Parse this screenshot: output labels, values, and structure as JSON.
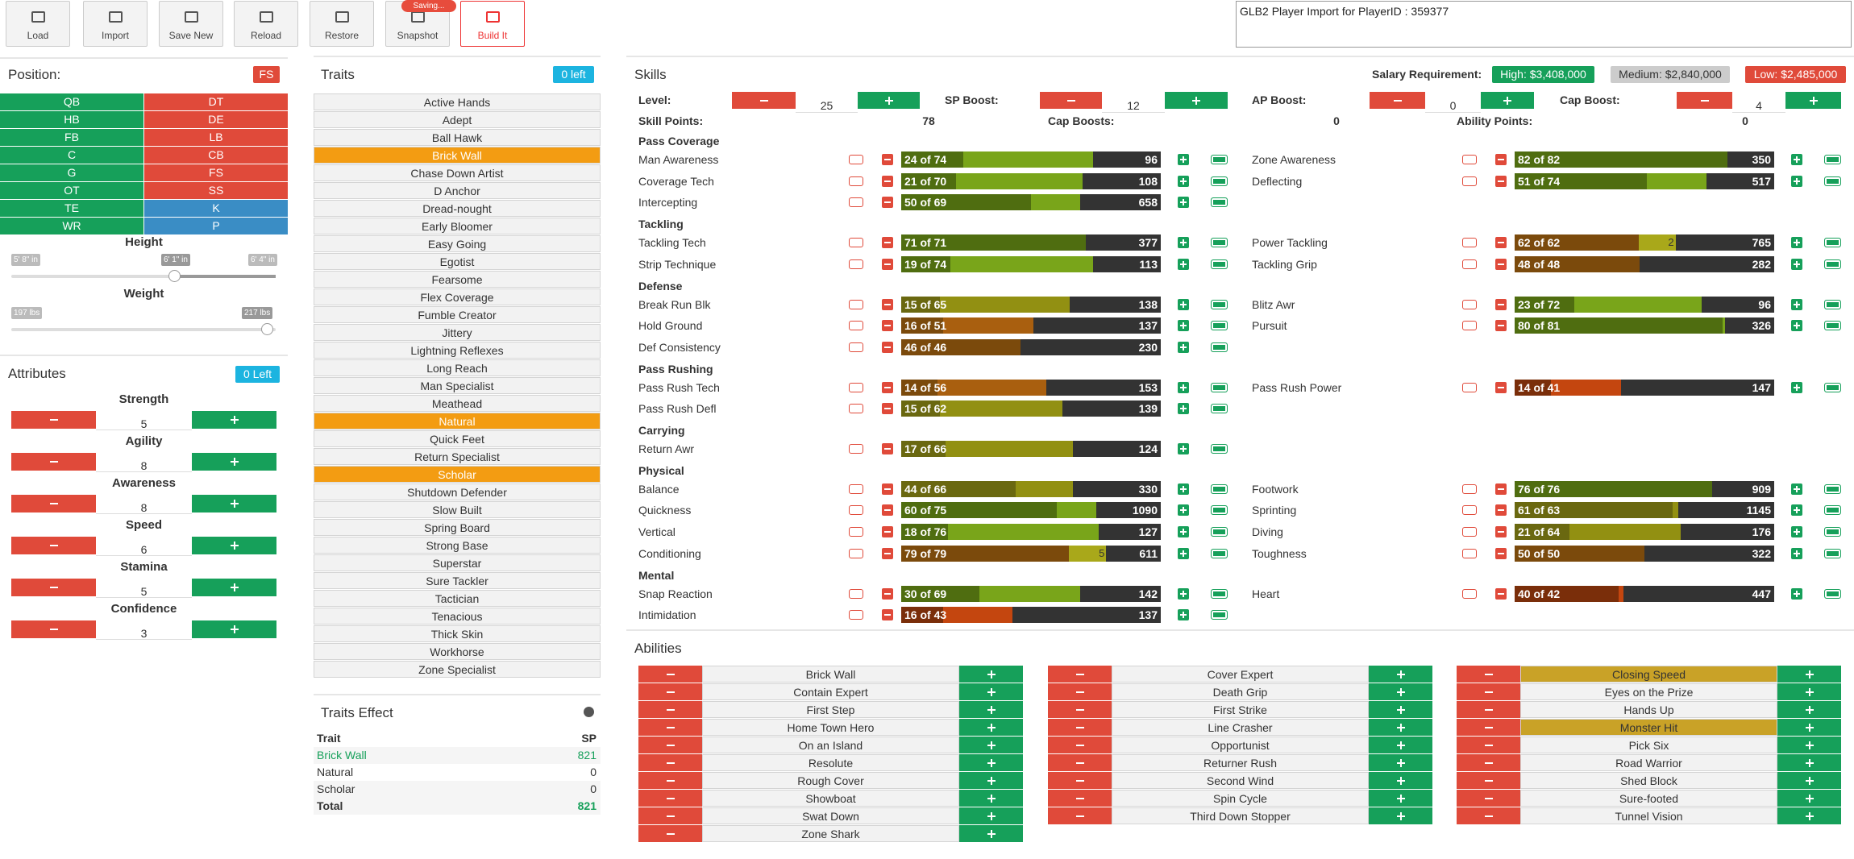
{
  "toolbar": {
    "buttons": [
      "Load",
      "Import",
      "Save New",
      "Reload",
      "Restore",
      "Snapshot",
      "Build It"
    ],
    "snapshot_badge": "Saving...",
    "import_text": "GLB2 Player Import for PlayerID : 359377"
  },
  "position": {
    "title": "Position:",
    "selected": "FS",
    "offense": [
      "QB",
      "HB",
      "FB",
      "C",
      "G",
      "OT",
      "TE",
      "WR"
    ],
    "defense": [
      "DT",
      "DE",
      "LB",
      "CB",
      "FS",
      "SS"
    ],
    "special": [
      "K",
      "P"
    ],
    "height": {
      "label": "Height",
      "min": "5' 8\" in",
      "value": "6' 1\" in",
      "max": "6' 4\" in"
    },
    "weight": {
      "label": "Weight",
      "min": "197 lbs",
      "max": "217 lbs"
    }
  },
  "attributes": {
    "title": "Attributes",
    "left": "0 Left",
    "items": [
      {
        "name": "Strength",
        "value": 5
      },
      {
        "name": "Agility",
        "value": 8
      },
      {
        "name": "Awareness",
        "value": 8
      },
      {
        "name": "Speed",
        "value": 6
      },
      {
        "name": "Stamina",
        "value": 5
      },
      {
        "name": "Confidence",
        "value": 3
      }
    ]
  },
  "traits": {
    "title": "Traits",
    "left": "0 left",
    "items": [
      {
        "name": "Active Hands"
      },
      {
        "name": "Adept"
      },
      {
        "name": "Ball Hawk"
      },
      {
        "name": "Brick Wall",
        "selected": true
      },
      {
        "name": "Chase Down Artist"
      },
      {
        "name": "D Anchor"
      },
      {
        "name": "Dread-nought"
      },
      {
        "name": "Early Bloomer"
      },
      {
        "name": "Easy Going"
      },
      {
        "name": "Egotist"
      },
      {
        "name": "Fearsome"
      },
      {
        "name": "Flex Coverage"
      },
      {
        "name": "Fumble Creator"
      },
      {
        "name": "Jittery"
      },
      {
        "name": "Lightning Reflexes"
      },
      {
        "name": "Long Reach"
      },
      {
        "name": "Man Specialist"
      },
      {
        "name": "Meathead"
      },
      {
        "name": "Natural",
        "selected": true
      },
      {
        "name": "Quick Feet"
      },
      {
        "name": "Return Specialist"
      },
      {
        "name": "Scholar",
        "selected": true
      },
      {
        "name": "Shutdown Defender"
      },
      {
        "name": "Slow Built"
      },
      {
        "name": "Spring Board"
      },
      {
        "name": "Strong Base"
      },
      {
        "name": "Superstar"
      },
      {
        "name": "Sure Tackler"
      },
      {
        "name": "Tactician"
      },
      {
        "name": "Tenacious"
      },
      {
        "name": "Thick Skin"
      },
      {
        "name": "Workhorse"
      },
      {
        "name": "Zone Specialist"
      }
    ]
  },
  "traits_effect": {
    "title": "Traits Effect",
    "headers": [
      "Trait",
      "SP"
    ],
    "rows": [
      {
        "trait": "Brick Wall",
        "sp": 821
      },
      {
        "trait": "Natural",
        "sp": 0
      },
      {
        "trait": "Scholar",
        "sp": 0
      }
    ],
    "total": {
      "label": "Total",
      "sp": 821
    }
  },
  "skills": {
    "title": "Skills",
    "xlim": [
      0,
      100
    ],
    "palette": {
      "green": [
        "#4f6d10",
        "#79a51a"
      ],
      "olive": [
        "#6a6810",
        "#929012"
      ],
      "brown": [
        "#7b4a0c",
        "#a95f0f"
      ],
      "red": [
        "#7a2e0a",
        "#c4460f"
      ],
      "boost": [
        "#a9a81a"
      ]
    },
    "salary": {
      "label": "Salary Requirement:",
      "high": "High: $3,408,000",
      "medium": "Medium: $2,840,000",
      "low": "Low: $2,485,000"
    },
    "controls": [
      {
        "label": "Level:",
        "value": 25
      },
      {
        "label": "SP Boost:",
        "value": 12
      },
      {
        "label": "AP Boost:",
        "value": 0
      },
      {
        "label": "Cap Boost:",
        "value": 4
      }
    ],
    "points": [
      {
        "label": "Skill Points:",
        "value": 78
      },
      {
        "label": "Cap Boosts:",
        "value": 0
      },
      {
        "label": "Ability Points:",
        "value": 0
      }
    ],
    "groups": [
      {
        "name": "Pass Coverage",
        "left": [
          {
            "name": "Man Awareness",
            "label": "24 of 74",
            "current": 24,
            "cap": 74,
            "value": 96,
            "tone": "green"
          },
          {
            "name": "Coverage Tech",
            "label": "21 of 70",
            "current": 21,
            "cap": 70,
            "value": 108,
            "tone": "green"
          },
          {
            "name": "Intercepting",
            "label": "50 of 69",
            "current": 50,
            "cap": 69,
            "value": 658,
            "tone": "green"
          }
        ],
        "right": [
          {
            "name": "Zone Awareness",
            "label": "82 of 82",
            "current": 82,
            "cap": 82,
            "value": 350,
            "tone": "green"
          },
          {
            "name": "Deflecting",
            "label": "51 of 74",
            "current": 51,
            "cap": 74,
            "value": 517,
            "tone": "green"
          }
        ]
      },
      {
        "name": "Tackling",
        "left": [
          {
            "name": "Tackling Tech",
            "label": "71 of 71",
            "current": 71,
            "cap": 71,
            "value": 377,
            "tone": "green"
          },
          {
            "name": "Strip Technique",
            "label": "19 of 74",
            "current": 19,
            "cap": 74,
            "value": 113,
            "tone": "green"
          }
        ],
        "right": [
          {
            "name": "Power Tackling",
            "label": "62 of 62",
            "current": 62,
            "cap": 62,
            "value": 765,
            "tone": "brown",
            "boost": 2
          },
          {
            "name": "Tackling Grip",
            "label": "48 of 48",
            "current": 48,
            "cap": 48,
            "value": 282,
            "tone": "brown"
          }
        ]
      },
      {
        "name": "Defense",
        "left": [
          {
            "name": "Break Run Blk",
            "label": "15 of 65",
            "current": 15,
            "cap": 65,
            "value": 138,
            "tone": "olive"
          },
          {
            "name": "Hold Ground",
            "label": "16 of 51",
            "current": 16,
            "cap": 51,
            "value": 137,
            "tone": "brown"
          },
          {
            "name": "Def Consistency",
            "label": "46 of 46",
            "current": 46,
            "cap": 46,
            "value": 230,
            "tone": "brown"
          }
        ],
        "right": [
          {
            "name": "Blitz Awr",
            "label": "23 of 72",
            "current": 23,
            "cap": 72,
            "value": 96,
            "tone": "green"
          },
          {
            "name": "Pursuit",
            "label": "80 of 81",
            "current": 80,
            "cap": 81,
            "value": 326,
            "tone": "green"
          }
        ]
      },
      {
        "name": "Pass Rushing",
        "left": [
          {
            "name": "Pass Rush Tech",
            "label": "14 of 56",
            "current": 14,
            "cap": 56,
            "value": 153,
            "tone": "brown"
          },
          {
            "name": "Pass Rush Defl",
            "label": "15 of 62",
            "current": 15,
            "cap": 62,
            "value": 139,
            "tone": "olive"
          }
        ],
        "right": [
          {
            "name": "Pass Rush Power",
            "label": "14 of 41",
            "current": 14,
            "cap": 41,
            "value": 147,
            "tone": "red"
          }
        ]
      },
      {
        "name": "Carrying",
        "left": [
          {
            "name": "Return Awr",
            "label": "17 of 66",
            "current": 17,
            "cap": 66,
            "value": 124,
            "tone": "olive"
          }
        ],
        "right": []
      },
      {
        "name": "Physical",
        "left": [
          {
            "name": "Balance",
            "label": "44 of 66",
            "current": 44,
            "cap": 66,
            "value": 330,
            "tone": "olive"
          },
          {
            "name": "Quickness",
            "label": "60 of 75",
            "current": 60,
            "cap": 75,
            "value": 1090,
            "tone": "green"
          },
          {
            "name": "Vertical",
            "label": "18 of 76",
            "current": 18,
            "cap": 76,
            "value": 127,
            "tone": "green"
          },
          {
            "name": "Conditioning",
            "label": "79 of 79",
            "current": 79,
            "cap": 79,
            "value": 611,
            "tone": "brown",
            "boost": 5
          }
        ],
        "right": [
          {
            "name": "Footwork",
            "label": "76 of 76",
            "current": 76,
            "cap": 76,
            "value": 909,
            "tone": "green"
          },
          {
            "name": "Sprinting",
            "label": "61 of 63",
            "current": 61,
            "cap": 63,
            "value": 1145,
            "tone": "olive"
          },
          {
            "name": "Diving",
            "label": "21 of 64",
            "current": 21,
            "cap": 64,
            "value": 176,
            "tone": "olive"
          },
          {
            "name": "Toughness",
            "label": "50 of 50",
            "current": 50,
            "cap": 50,
            "value": 322,
            "tone": "brown"
          }
        ]
      },
      {
        "name": "Mental",
        "left": [
          {
            "name": "Snap Reaction",
            "label": "30 of 69",
            "current": 30,
            "cap": 69,
            "value": 142,
            "tone": "green"
          },
          {
            "name": "Intimidation",
            "label": "16 of 43",
            "current": 16,
            "cap": 43,
            "value": 137,
            "tone": "red"
          }
        ],
        "right": [
          {
            "name": "Heart",
            "label": "40 of 42",
            "current": 40,
            "cap": 42,
            "value": 447,
            "tone": "red"
          }
        ]
      }
    ]
  },
  "abilities": {
    "title": "Abilities",
    "columns": [
      [
        {
          "name": "Brick Wall"
        },
        {
          "name": "Contain Expert"
        },
        {
          "name": "First Step"
        },
        {
          "name": "Home Town Hero"
        },
        {
          "name": "On an Island"
        },
        {
          "name": "Resolute"
        },
        {
          "name": "Rough Cover"
        },
        {
          "name": "Showboat"
        },
        {
          "name": "Swat Down"
        },
        {
          "name": "Zone Shark"
        }
      ],
      [
        {
          "name": "Cover Expert"
        },
        {
          "name": "Death Grip"
        },
        {
          "name": "First Strike"
        },
        {
          "name": "Line Crasher"
        },
        {
          "name": "Opportunist"
        },
        {
          "name": "Returner Rush"
        },
        {
          "name": "Second Wind"
        },
        {
          "name": "Spin Cycle"
        },
        {
          "name": "Third Down Stopper"
        }
      ],
      [
        {
          "name": "Closing Speed",
          "selected": true
        },
        {
          "name": "Eyes on the Prize"
        },
        {
          "name": "Hands Up"
        },
        {
          "name": "Monster Hit",
          "selected": true
        },
        {
          "name": "Pick Six"
        },
        {
          "name": "Road Warrior"
        },
        {
          "name": "Shed Block"
        },
        {
          "name": "Sure-footed"
        },
        {
          "name": "Tunnel Vision"
        }
      ]
    ]
  }
}
